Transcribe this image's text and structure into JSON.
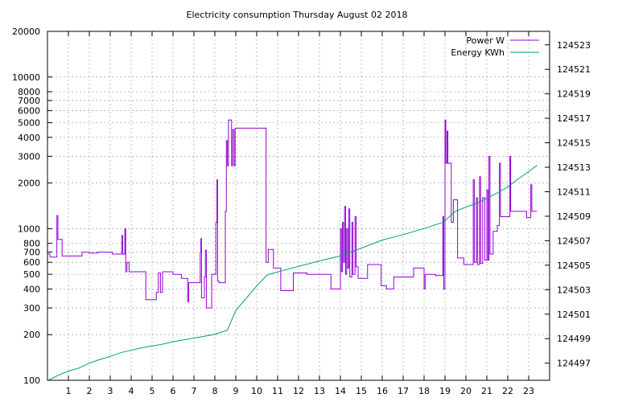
{
  "chart_data": {
    "type": "line",
    "title": "Electricity consumption Thursday August 02 2018",
    "xlabel": "",
    "ylabel": "",
    "xlim": [
      0,
      24
    ],
    "ylim": [
      100,
      20000
    ],
    "y_scale": "log",
    "y2lim": [
      124495.6,
      124524.1
    ],
    "grid": true,
    "legend_position": "top-right",
    "x_ticks": [
      "1",
      "2",
      "3",
      "4",
      "5",
      "6",
      "7",
      "8",
      "9",
      "10",
      "11",
      "12",
      "13",
      "14",
      "15",
      "16",
      "17",
      "18",
      "19",
      "20",
      "21",
      "22",
      "23"
    ],
    "y_ticks": [
      "100",
      "200",
      "300",
      "400",
      "500",
      "600",
      "700",
      "800",
      "1000",
      "2000",
      "3000",
      "4000",
      "5000",
      "6000",
      "7000",
      "8000",
      "10000",
      "20000"
    ],
    "y2_ticks": [
      "124497",
      "124499",
      "124501",
      "124503",
      "124505",
      "124507",
      "124509",
      "124511",
      "124513",
      "124515",
      "124517",
      "124519",
      "124521",
      "124523"
    ],
    "series": [
      {
        "name": "Power W",
        "axis": "y",
        "color": "#9400d3",
        "points": [
          [
            0.0,
            680
          ],
          [
            0.12,
            680
          ],
          [
            0.12,
            650
          ],
          [
            0.45,
            650
          ],
          [
            0.45,
            1220
          ],
          [
            0.5,
            1220
          ],
          [
            0.5,
            850
          ],
          [
            0.7,
            850
          ],
          [
            0.7,
            660
          ],
          [
            0.9,
            660
          ],
          [
            1.0,
            660
          ],
          [
            1.65,
            660
          ],
          [
            1.65,
            700
          ],
          [
            2.0,
            700
          ],
          [
            2.0,
            690
          ],
          [
            2.4,
            690
          ],
          [
            2.4,
            700
          ],
          [
            3.1,
            700
          ],
          [
            3.1,
            680
          ],
          [
            3.55,
            680
          ],
          [
            3.55,
            900
          ],
          [
            3.6,
            900
          ],
          [
            3.6,
            680
          ],
          [
            3.7,
            680
          ],
          [
            3.7,
            1000
          ],
          [
            3.74,
            1000
          ],
          [
            3.74,
            520
          ],
          [
            3.8,
            520
          ],
          [
            3.8,
            600
          ],
          [
            3.9,
            600
          ],
          [
            3.9,
            520
          ],
          [
            4.7,
            520
          ],
          [
            4.7,
            340
          ],
          [
            5.2,
            340
          ],
          [
            5.2,
            380
          ],
          [
            5.3,
            380
          ],
          [
            5.3,
            510
          ],
          [
            5.4,
            510
          ],
          [
            5.4,
            380
          ],
          [
            5.5,
            380
          ],
          [
            5.5,
            520
          ],
          [
            6.0,
            520
          ],
          [
            6.0,
            500
          ],
          [
            6.4,
            500
          ],
          [
            6.4,
            470
          ],
          [
            6.7,
            470
          ],
          [
            6.7,
            330
          ],
          [
            6.75,
            330
          ],
          [
            6.75,
            440
          ],
          [
            7.3,
            440
          ],
          [
            7.3,
            700
          ],
          [
            7.33,
            700
          ],
          [
            7.33,
            860
          ],
          [
            7.36,
            860
          ],
          [
            7.36,
            350
          ],
          [
            7.5,
            350
          ],
          [
            7.5,
            480
          ],
          [
            7.55,
            480
          ],
          [
            7.55,
            720
          ],
          [
            7.6,
            720
          ],
          [
            7.6,
            300
          ],
          [
            7.85,
            300
          ],
          [
            7.85,
            500
          ],
          [
            8.05,
            500
          ],
          [
            8.05,
            1100
          ],
          [
            8.1,
            1100
          ],
          [
            8.1,
            2100
          ],
          [
            8.13,
            2100
          ],
          [
            8.13,
            450
          ],
          [
            8.2,
            450
          ],
          [
            8.2,
            440
          ],
          [
            8.5,
            440
          ],
          [
            8.5,
            1300
          ],
          [
            8.55,
            1300
          ],
          [
            8.55,
            3800
          ],
          [
            8.6,
            3800
          ],
          [
            8.6,
            2600
          ],
          [
            8.65,
            2600
          ],
          [
            8.65,
            5200
          ],
          [
            8.8,
            5200
          ],
          [
            8.8,
            2600
          ],
          [
            8.85,
            2600
          ],
          [
            8.85,
            4500
          ],
          [
            8.92,
            4500
          ],
          [
            8.92,
            2600
          ],
          [
            8.97,
            2600
          ],
          [
            8.97,
            4600
          ],
          [
            10.45,
            4600
          ],
          [
            10.45,
            600
          ],
          [
            10.55,
            600
          ],
          [
            10.55,
            730
          ],
          [
            10.8,
            730
          ],
          [
            10.8,
            550
          ],
          [
            11.15,
            550
          ],
          [
            11.15,
            390
          ],
          [
            11.75,
            390
          ],
          [
            11.75,
            510
          ],
          [
            12.4,
            510
          ],
          [
            12.4,
            500
          ],
          [
            13.2,
            500
          ],
          [
            13.2,
            500
          ],
          [
            13.55,
            500
          ],
          [
            13.55,
            400
          ],
          [
            14.0,
            400
          ],
          [
            14.0,
            1000
          ],
          [
            14.05,
            1000
          ],
          [
            14.05,
            520
          ],
          [
            14.1,
            520
          ],
          [
            14.1,
            1100
          ],
          [
            14.15,
            1100
          ],
          [
            14.15,
            600
          ],
          [
            14.2,
            600
          ],
          [
            14.2,
            1400
          ],
          [
            14.25,
            1400
          ],
          [
            14.25,
            500
          ],
          [
            14.3,
            500
          ],
          [
            14.3,
            1000
          ],
          [
            14.35,
            1000
          ],
          [
            14.35,
            550
          ],
          [
            14.4,
            550
          ],
          [
            14.4,
            1350
          ],
          [
            14.45,
            1350
          ],
          [
            14.45,
            480
          ],
          [
            14.55,
            480
          ],
          [
            14.55,
            1100
          ],
          [
            14.6,
            1100
          ],
          [
            14.6,
            500
          ],
          [
            14.7,
            500
          ],
          [
            14.7,
            1200
          ],
          [
            14.75,
            1200
          ],
          [
            14.75,
            560
          ],
          [
            14.85,
            560
          ],
          [
            14.85,
            470
          ],
          [
            15.3,
            470
          ],
          [
            15.3,
            580
          ],
          [
            15.95,
            580
          ],
          [
            15.95,
            420
          ],
          [
            16.2,
            420
          ],
          [
            16.2,
            400
          ],
          [
            16.55,
            400
          ],
          [
            16.55,
            480
          ],
          [
            16.8,
            480
          ],
          [
            16.8,
            480
          ],
          [
            17.5,
            480
          ],
          [
            17.5,
            550
          ],
          [
            18.0,
            550
          ],
          [
            18.0,
            400
          ],
          [
            18.05,
            400
          ],
          [
            18.05,
            500
          ],
          [
            18.55,
            500
          ],
          [
            18.55,
            490
          ],
          [
            18.9,
            490
          ],
          [
            18.9,
            1200
          ],
          [
            18.94,
            1200
          ],
          [
            18.94,
            400
          ],
          [
            19.0,
            400
          ],
          [
            19.0,
            5200
          ],
          [
            19.04,
            5200
          ],
          [
            19.04,
            2700
          ],
          [
            19.1,
            2700
          ],
          [
            19.1,
            4400
          ],
          [
            19.14,
            4400
          ],
          [
            19.14,
            2700
          ],
          [
            19.3,
            2700
          ],
          [
            19.3,
            1100
          ],
          [
            19.4,
            1100
          ],
          [
            19.4,
            1550
          ],
          [
            19.6,
            1550
          ],
          [
            19.6,
            640
          ],
          [
            19.9,
            640
          ],
          [
            19.9,
            580
          ],
          [
            20.35,
            580
          ],
          [
            20.35,
            2100
          ],
          [
            20.4,
            2100
          ],
          [
            20.4,
            600
          ],
          [
            20.5,
            600
          ],
          [
            20.5,
            1600
          ],
          [
            20.55,
            1600
          ],
          [
            20.55,
            580
          ],
          [
            20.65,
            580
          ],
          [
            20.65,
            2200
          ],
          [
            20.7,
            2200
          ],
          [
            20.7,
            590
          ],
          [
            20.8,
            590
          ],
          [
            20.8,
            1600
          ],
          [
            20.9,
            1600
          ],
          [
            20.9,
            620
          ],
          [
            21.0,
            620
          ],
          [
            21.0,
            1800
          ],
          [
            21.05,
            1800
          ],
          [
            21.05,
            620
          ],
          [
            21.1,
            620
          ],
          [
            21.1,
            3000
          ],
          [
            21.15,
            3000
          ],
          [
            21.15,
            680
          ],
          [
            21.3,
            680
          ],
          [
            21.3,
            960
          ],
          [
            21.5,
            960
          ],
          [
            21.5,
            1050
          ],
          [
            21.6,
            1050
          ],
          [
            21.6,
            2700
          ],
          [
            21.65,
            2700
          ],
          [
            21.65,
            1200
          ],
          [
            22.1,
            1200
          ],
          [
            22.1,
            3000
          ],
          [
            22.14,
            3000
          ],
          [
            22.14,
            1300
          ],
          [
            22.9,
            1300
          ],
          [
            22.9,
            1180
          ],
          [
            23.1,
            1180
          ],
          [
            23.1,
            1950
          ],
          [
            23.15,
            1950
          ],
          [
            23.15,
            1300
          ],
          [
            23.4,
            1300
          ]
        ]
      },
      {
        "name": "Energy KWh",
        "axis": "y2",
        "color": "#009e73",
        "points": [
          [
            0.05,
            124495.6
          ],
          [
            0.5,
            124496.0
          ],
          [
            1.0,
            124496.35
          ],
          [
            1.5,
            124496.6
          ],
          [
            2.0,
            124497.0
          ],
          [
            2.5,
            124497.3
          ],
          [
            3.0,
            124497.55
          ],
          [
            3.5,
            124497.85
          ],
          [
            4.0,
            124498.05
          ],
          [
            4.5,
            124498.25
          ],
          [
            5.0,
            124498.4
          ],
          [
            5.5,
            124498.55
          ],
          [
            6.0,
            124498.75
          ],
          [
            6.5,
            124498.9
          ],
          [
            7.0,
            124499.05
          ],
          [
            7.5,
            124499.2
          ],
          [
            8.0,
            124499.35
          ],
          [
            8.6,
            124499.7
          ],
          [
            9.0,
            124501.3
          ],
          [
            9.5,
            124502.3
          ],
          [
            10.0,
            124503.3
          ],
          [
            10.5,
            124504.2
          ],
          [
            11.0,
            124504.45
          ],
          [
            12.0,
            124504.9
          ],
          [
            13.0,
            124505.35
          ],
          [
            14.0,
            124505.75
          ],
          [
            15.0,
            124506.4
          ],
          [
            16.0,
            124507.05
          ],
          [
            17.0,
            124507.5
          ],
          [
            18.0,
            124508.0
          ],
          [
            18.9,
            124508.5
          ],
          [
            19.1,
            124508.8
          ],
          [
            19.5,
            124509.4
          ],
          [
            20.0,
            124509.75
          ],
          [
            20.5,
            124510.05
          ],
          [
            21.0,
            124510.45
          ],
          [
            21.5,
            124510.9
          ],
          [
            22.0,
            124511.4
          ],
          [
            22.5,
            124512.05
          ],
          [
            23.0,
            124512.65
          ],
          [
            23.4,
            124513.15
          ]
        ]
      }
    ]
  }
}
